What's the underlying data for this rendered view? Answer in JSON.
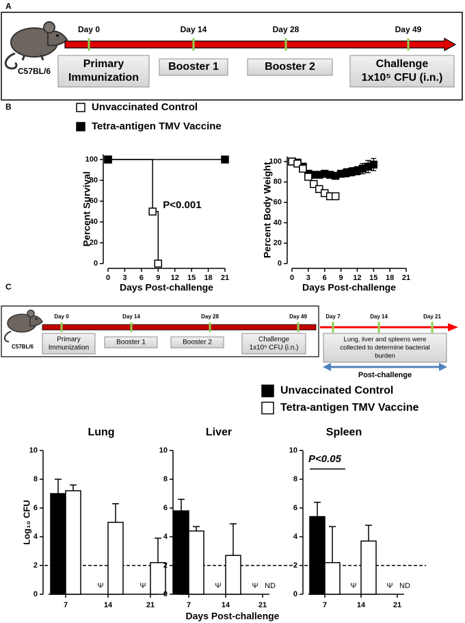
{
  "panel_labels": {
    "a": "A",
    "b": "B",
    "c": "C"
  },
  "timeline_a": {
    "strain": "C57BL/6",
    "days": [
      "Day 0",
      "Day 14",
      "Day 28",
      "Day 49"
    ],
    "boxes": [
      [
        "Primary",
        "Immunization"
      ],
      [
        "Booster 1"
      ],
      [
        "Booster 2"
      ],
      [
        "Challenge",
        "1x10⁵ CFU (i.n.)"
      ]
    ]
  },
  "timeline_c": {
    "strain": "C57BL/6",
    "days": [
      "Day 0",
      "Day 14",
      "Day 28",
      "Day 49"
    ],
    "boxes": [
      [
        "Primary",
        "Immunization"
      ],
      [
        "Booster 1"
      ],
      [
        "Booster 2"
      ],
      [
        "Challenge",
        "1x10⁵ CFU (i.n.)"
      ]
    ],
    "post_days": [
      "Day 7",
      "Day 14",
      "Day 21"
    ],
    "post_box": [
      "Lung, liver and spleens were",
      "collected to determine bacterial",
      "burden"
    ],
    "post_label": "Post-challenge"
  },
  "chart_data": [
    {
      "type": "line",
      "step": true,
      "x_label": "Days Post-challenge",
      "y_label": "Percent Survival",
      "xlim": [
        0,
        21
      ],
      "xticks": [
        0,
        3,
        6,
        9,
        12,
        15,
        18,
        21
      ],
      "ylim": [
        0,
        105
      ],
      "yticks": [
        0,
        20,
        40,
        60,
        80,
        100
      ],
      "annotation": "P<0.001",
      "series": [
        {
          "name": "Unvaccinated Control",
          "color": "#000000",
          "marker": "open-square",
          "x": [
            0,
            8,
            9
          ],
          "values": [
            100,
            50,
            0
          ]
        },
        {
          "name": "Tetra-antigen TMV Vaccine",
          "color": "#000000",
          "marker": "filled-square",
          "x": [
            0,
            21
          ],
          "values": [
            100,
            100
          ]
        }
      ]
    },
    {
      "type": "line",
      "step": false,
      "x_label": "Days Post-challenge",
      "y_label": "Percent Body Weight",
      "xlim": [
        0,
        21
      ],
      "xticks": [
        0,
        3,
        6,
        9,
        12,
        15,
        18,
        21
      ],
      "ylim": [
        0,
        105
      ],
      "yticks": [
        0,
        20,
        40,
        60,
        80,
        100
      ],
      "series": [
        {
          "color": "#000000",
          "marker": "filled-square",
          "x": [
            0,
            1,
            2,
            3,
            4,
            5,
            6,
            7,
            8,
            9,
            10,
            11,
            12,
            13,
            14,
            15
          ],
          "values": [
            100,
            99,
            95,
            88,
            87,
            87,
            88,
            87,
            86,
            88,
            89,
            90,
            91,
            93,
            95,
            97
          ],
          "errors": [
            2,
            2,
            3,
            3,
            3,
            3,
            3,
            3,
            3,
            3,
            4,
            4,
            4,
            5,
            6,
            6
          ]
        },
        {
          "color": "#000000",
          "marker": "open-square",
          "x": [
            0,
            1,
            2,
            3,
            4,
            5,
            6,
            7,
            8
          ],
          "values": [
            100,
            98,
            93,
            85,
            78,
            73,
            69,
            66,
            66
          ],
          "errors": [
            1,
            2,
            3,
            3,
            3,
            3,
            3,
            3,
            3
          ]
        }
      ]
    },
    {
      "type": "bar",
      "title": "Lung",
      "y_label": "Log₁₀ CFU",
      "categories": [
        "7",
        "14",
        "21"
      ],
      "ylim": [
        0,
        10
      ],
      "yticks": [
        0,
        2,
        4,
        6,
        8,
        10
      ],
      "threshold": 2,
      "series": [
        {
          "name": "Unvaccinated Control",
          "color": "#000000",
          "values": [
            7.0,
            null,
            null
          ],
          "errors": [
            1.0,
            null,
            null
          ]
        },
        {
          "name": "Tetra-antigen TMV Vaccine",
          "color": "#ffffff",
          "values": [
            7.2,
            5.0,
            2.2
          ],
          "errors": [
            0.4,
            1.3,
            1.7
          ]
        }
      ],
      "annotations": [
        {
          "category": "14",
          "series": 0,
          "text": "Ψ"
        },
        {
          "category": "21",
          "series": 0,
          "text": "Ψ"
        }
      ]
    },
    {
      "type": "bar",
      "title": "Liver",
      "x_label": "Days Post-challenge",
      "categories": [
        "7",
        "14",
        "21"
      ],
      "ylim": [
        0,
        10
      ],
      "yticks": [
        0,
        2,
        4,
        6,
        8,
        10
      ],
      "threshold": 2,
      "series": [
        {
          "color": "#000000",
          "values": [
            5.8,
            null,
            null
          ],
          "errors": [
            0.8,
            null,
            null
          ]
        },
        {
          "color": "#ffffff",
          "values": [
            4.4,
            2.7,
            null
          ],
          "errors": [
            0.3,
            2.2,
            null
          ]
        }
      ],
      "annotations": [
        {
          "category": "14",
          "series": 0,
          "text": "Ψ"
        },
        {
          "category": "21",
          "series": 0,
          "text": "Ψ"
        },
        {
          "category": "21",
          "series": 1,
          "text": "ND"
        }
      ]
    },
    {
      "type": "bar",
      "title": "Spleen",
      "categories": [
        "7",
        "14",
        "21"
      ],
      "ylim": [
        0,
        10
      ],
      "yticks": [
        0,
        2,
        4,
        6,
        8,
        10
      ],
      "threshold": 2,
      "series": [
        {
          "color": "#000000",
          "values": [
            5.4,
            null,
            null
          ],
          "errors": [
            1.0,
            null,
            null
          ]
        },
        {
          "color": "#ffffff",
          "values": [
            2.2,
            3.7,
            null
          ],
          "errors": [
            2.5,
            1.1,
            null
          ]
        }
      ],
      "annotations": [
        {
          "category": "14",
          "series": 0,
          "text": "Ψ"
        },
        {
          "category": "21",
          "series": 0,
          "text": "Ψ"
        },
        {
          "category": "21",
          "series": 1,
          "text": "ND"
        }
      ],
      "comparison": {
        "category": "7",
        "text": "P<0.05"
      }
    }
  ]
}
